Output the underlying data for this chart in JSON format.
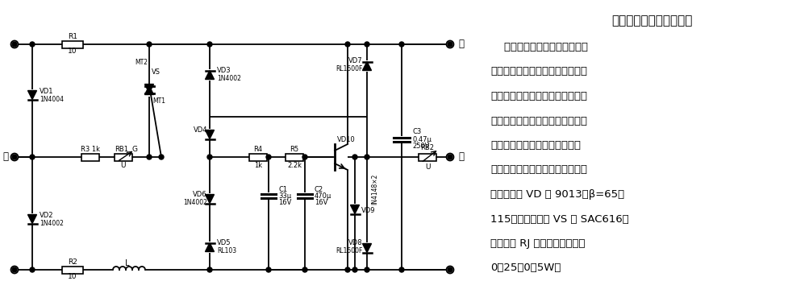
{
  "title": "电话机、传真机保护电路",
  "description_lines": [
    "    由于外线常出现瞬间高压致使",
    "电话机、传真机等损坏。针对这种",
    "情况，本保护电路，可有效地防止",
    "雷击、线路意外过压而对电话机、",
    "传真机设备造成破坏。该电路对",
    "电话机、传真机的工作完全没有影",
    "响。三极管 VD 为 9013、β=65～",
    "115；双向晶闸管 VS 为 SAC616；",
    "电阻器为 RJ 型，标称功率均为",
    "0．25～0．5W。"
  ],
  "bg_color": "#ffffff",
  "line_color": "#000000",
  "text_color": "#000000"
}
